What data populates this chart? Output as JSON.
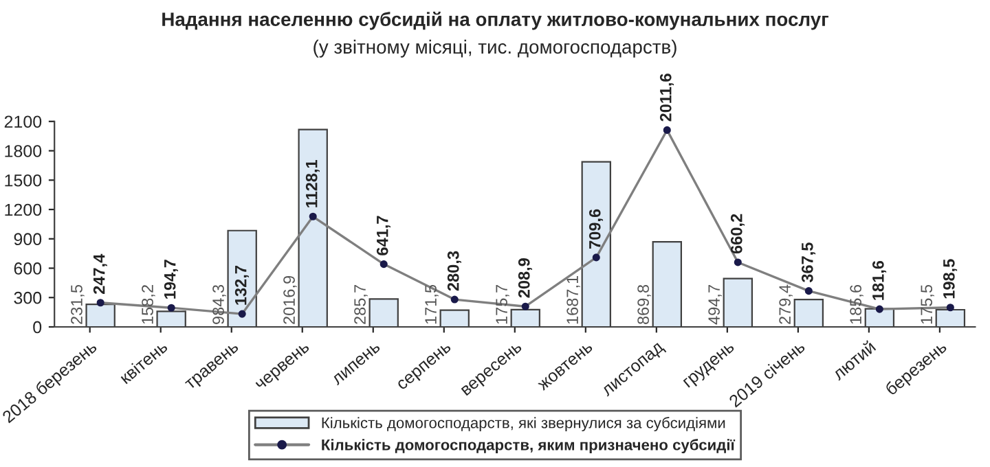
{
  "chart_data": {
    "type": "bar",
    "title": "Надання населенню субсидій на оплату житлово-комунальних послуг",
    "subtitle": "(у звітному місяці, тис. домогосподарств)",
    "categories": [
      "2018 березень",
      "квітень",
      "травень",
      "червень",
      "липень",
      "серпень",
      "вересень",
      "жовтень",
      "листопад",
      "грудень",
      "2019 січень",
      "лютий",
      "березень"
    ],
    "series": [
      {
        "name": "Кількість домогосподарств, які звернулися за субсидіями",
        "color": "#dce9f5",
        "values": [
          231.5,
          158.2,
          984.3,
          2016.9,
          285.7,
          171.5,
          175.7,
          1687.1,
          869.8,
          494.7,
          279.4,
          185.6,
          175.5
        ],
        "value_labels": [
          "231,5",
          "158,2",
          "984,3",
          "2016,9",
          "285,7",
          "171,5",
          "175,7",
          "1687,1",
          "869,8",
          "494,7",
          "279,4",
          "185,6",
          "175,5"
        ]
      },
      {
        "name": "Кількість домогосподарств, яким призначено субсидії",
        "type": "line",
        "color": "#7f7f7f",
        "marker": "circle",
        "values": [
          247.4,
          194.7,
          132.7,
          1128.1,
          641.7,
          280.3,
          208.9,
          709.6,
          2011.6,
          660.2,
          367.5,
          181.6,
          198.5
        ],
        "value_labels": [
          "247,4",
          "194,7",
          "132,7",
          "1128,1",
          "641,7",
          "280,3",
          "208,9",
          "709,6",
          "2011,6",
          "660,2",
          "367,5",
          "181,6",
          "198,5"
        ]
      }
    ],
    "ylim": [
      0,
      2100
    ],
    "yticks": [
      0,
      300,
      600,
      900,
      1200,
      1500,
      1800,
      2100
    ],
    "grid": false,
    "legend": "bottom"
  }
}
